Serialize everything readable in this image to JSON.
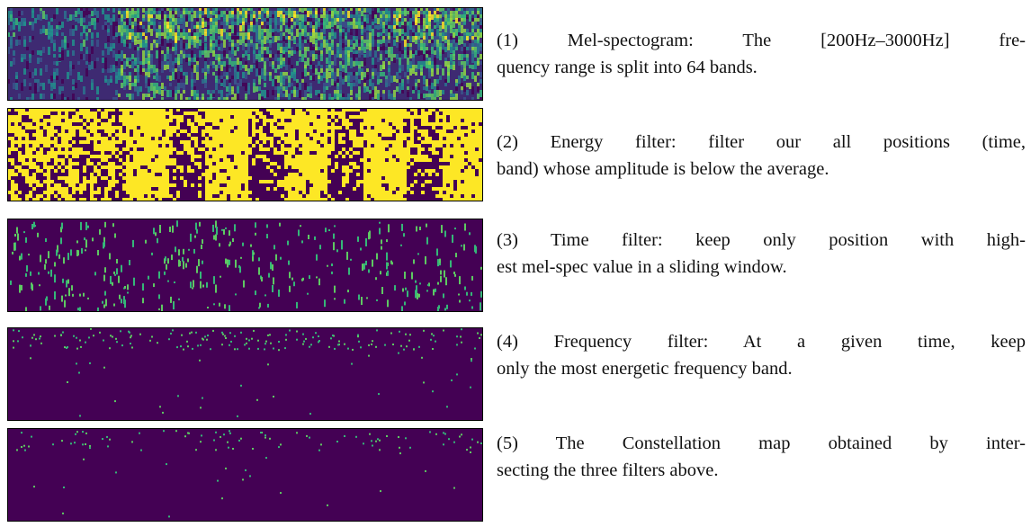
{
  "captions": [
    {
      "lines": [
        "(1) Mel-spectogram: The [200Hz–3000Hz] fre-",
        "quency range is split into 64 bands."
      ]
    },
    {
      "lines": [
        "(2) Energy filter: filter our all positions (time,",
        "band) whose amplitude is below the average."
      ]
    },
    {
      "lines": [
        "(3) Time filter: keep only position with high-",
        "est mel-spec value in a sliding window."
      ]
    },
    {
      "lines": [
        "(4) Frequency filter: At a given time, keep",
        "only the most energetic frequency band."
      ]
    },
    {
      "lines": [
        "(5) The Constellation map obtained by inter-",
        "secting the three filters above."
      ]
    }
  ]
}
